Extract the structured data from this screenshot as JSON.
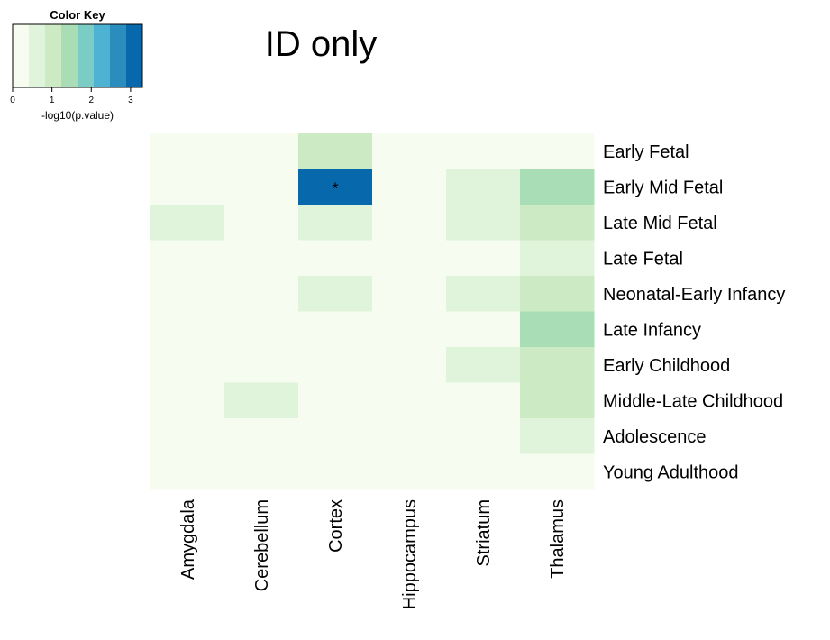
{
  "title": "ID only",
  "color_key": {
    "title": "Color Key",
    "xlabel": "-log10(p.value)",
    "ticks": [
      "0",
      "1",
      "2",
      "3"
    ],
    "range": [
      0,
      3.3
    ],
    "colors": [
      "#f7fcf0",
      "#e0f3db",
      "#ccebc5",
      "#a8ddb5",
      "#7bccc4",
      "#4eb3d3",
      "#2b8cbe",
      "#0868ac"
    ]
  },
  "chart_data": {
    "type": "heatmap",
    "columns": [
      "Amygdala",
      "Cerebellum",
      "Cortex",
      "Hippocampus",
      "Striatum",
      "Thalamus"
    ],
    "rows": [
      "Early Fetal",
      "Early Mid Fetal",
      "Late Mid Fetal",
      "Late Fetal",
      "Neonatal-Early Infancy",
      "Late Infancy",
      "Early Childhood",
      "Middle-Late Childhood",
      "Adolescence",
      "Young Adulthood"
    ],
    "values": [
      [
        0.0,
        0.0,
        1.1,
        0.0,
        0.0,
        0.0
      ],
      [
        0.0,
        0.0,
        3.2,
        0.0,
        0.6,
        1.4
      ],
      [
        0.6,
        0.0,
        0.6,
        0.0,
        0.6,
        0.9
      ],
      [
        0.0,
        0.0,
        0.0,
        0.0,
        0.0,
        0.5
      ],
      [
        0.0,
        0.0,
        0.5,
        0.0,
        0.5,
        0.9
      ],
      [
        0.0,
        0.0,
        0.0,
        0.0,
        0.0,
        1.5
      ],
      [
        0.0,
        0.0,
        0.0,
        0.0,
        0.5,
        0.9
      ],
      [
        0.0,
        0.6,
        0.0,
        0.0,
        0.0,
        0.9
      ],
      [
        0.0,
        0.0,
        0.0,
        0.0,
        0.0,
        0.5
      ],
      [
        0.0,
        0.0,
        0.0,
        0.0,
        0.0,
        0.0
      ]
    ],
    "annotations": [
      {
        "row": "Early Mid Fetal",
        "column": "Cortex",
        "text": "*"
      }
    ]
  }
}
